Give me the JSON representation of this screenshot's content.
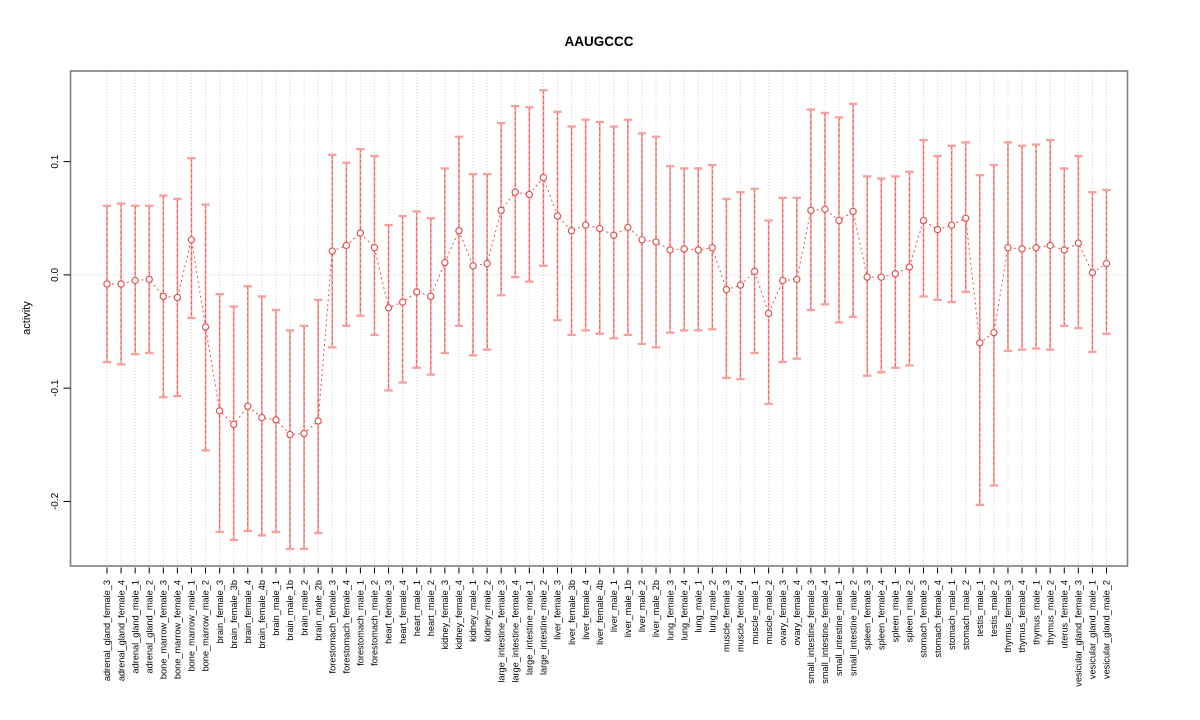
{
  "chart_data": {
    "type": "scatter",
    "title": "AAUGCCC",
    "xlabel": "",
    "ylabel": "activity",
    "ylim": [
      -0.257,
      0.18
    ],
    "yticks": [
      {
        "label": "0.1",
        "value": 0.1
      },
      {
        "label": "0.0",
        "value": 0.0
      },
      {
        "label": "-0.1",
        "value": -0.1
      },
      {
        "label": "-0.2",
        "value": -0.2
      }
    ],
    "grid": {
      "vertical": "dotted line at every category",
      "horizontal": "dotted line at y=0"
    },
    "marker": "open-circle",
    "line_style": "dashed",
    "error_bars": true,
    "categories": [
      "adrenal_gland_female_3",
      "adrenal_gland_female_4",
      "adrenal_gland_male_1",
      "adrenal_gland_male_2",
      "bone_marrow_female_3",
      "bone_marrow_female_4",
      "bone_marrow_male_1",
      "bone_marrow_male_2",
      "brain_female_3",
      "brain_female_3b",
      "brain_female_4",
      "brain_female_4b",
      "brain_male_1",
      "brain_male_1b",
      "brain_male_2",
      "brain_male_2b",
      "forestomach_female_3",
      "forestomach_female_4",
      "forestomach_male_1",
      "forestomach_male_2",
      "heart_female_3",
      "heart_female_4",
      "heart_male_1",
      "heart_male_2",
      "kidney_female_3",
      "kidney_female_4",
      "kidney_male_1",
      "kidney_male_2",
      "large_intestine_female_3",
      "large_intestine_female_4",
      "large_intestine_male_1",
      "large_intestine_male_2",
      "liver_female_3",
      "liver_female_3b",
      "liver_female_4",
      "liver_female_4b",
      "liver_male_1",
      "liver_male_1b",
      "liver_male_2",
      "liver_male_2b",
      "lung_female_3",
      "lung_female_4",
      "lung_male_1",
      "lung_male_2",
      "muscle_female_3",
      "muscle_female_4",
      "muscle_male_1",
      "muscle_male_2",
      "ovary_female_3",
      "ovary_female_4",
      "small_intestine_female_3",
      "small_intestine_female_4",
      "small_intestine_male_1",
      "small_intestine_male_2",
      "spleen_female_3",
      "spleen_female_4",
      "spleen_male_1",
      "spleen_male_2",
      "stomach_female_3",
      "stomach_female_4",
      "stomach_male_1",
      "stomach_male_2",
      "testis_male_1",
      "testis_male_2",
      "thymus_female_3",
      "thymus_female_4",
      "thymus_male_1",
      "thymus_male_2",
      "uterus_female_4",
      "vesicular_gland_female_3",
      "vesicular_gland_male_1",
      "vesicular_gland_male_2"
    ],
    "series": [
      {
        "name": "activity",
        "values": [
          -0.008,
          -0.008,
          -0.005,
          -0.004,
          -0.019,
          -0.02,
          0.031,
          -0.046,
          -0.12,
          -0.132,
          -0.116,
          -0.126,
          -0.128,
          -0.141,
          -0.14,
          -0.129,
          0.021,
          0.026,
          0.037,
          0.024,
          -0.029,
          -0.024,
          -0.015,
          -0.019,
          0.011,
          0.039,
          0.008,
          0.01,
          0.057,
          0.073,
          0.071,
          0.086,
          0.052,
          0.039,
          0.044,
          0.041,
          0.035,
          0.042,
          0.031,
          0.029,
          0.022,
          0.023,
          0.022,
          0.024,
          -0.013,
          -0.009,
          0.003,
          -0.034,
          -0.005,
          -0.004,
          0.057,
          0.058,
          0.048,
          0.056,
          -0.002,
          -0.002,
          0.001,
          0.007,
          0.048,
          0.04,
          0.044,
          0.05,
          -0.06,
          -0.051,
          0.024,
          0.023,
          0.024,
          0.026,
          0.022,
          0.028,
          0.002,
          0.01
        ],
        "err_lo": [
          -0.077,
          -0.079,
          -0.07,
          -0.069,
          -0.108,
          -0.107,
          -0.038,
          -0.155,
          -0.227,
          -0.234,
          -0.226,
          -0.23,
          -0.227,
          -0.242,
          -0.242,
          -0.228,
          -0.064,
          -0.045,
          -0.036,
          -0.053,
          -0.102,
          -0.095,
          -0.082,
          -0.088,
          -0.069,
          -0.045,
          -0.071,
          -0.066,
          -0.018,
          -0.002,
          -0.006,
          0.008,
          -0.04,
          -0.053,
          -0.049,
          -0.052,
          -0.056,
          -0.053,
          -0.061,
          -0.064,
          -0.051,
          -0.049,
          -0.049,
          -0.048,
          -0.091,
          -0.092,
          -0.069,
          -0.114,
          -0.077,
          -0.074,
          -0.031,
          -0.026,
          -0.042,
          -0.037,
          -0.089,
          -0.086,
          -0.082,
          -0.08,
          -0.019,
          -0.022,
          -0.024,
          -0.015,
          -0.203,
          -0.186,
          -0.067,
          -0.066,
          -0.065,
          -0.066,
          -0.045,
          -0.047,
          -0.068,
          -0.052
        ],
        "err_hi": [
          0.061,
          0.063,
          0.061,
          0.061,
          0.07,
          0.067,
          0.103,
          0.062,
          -0.017,
          -0.028,
          -0.01,
          -0.019,
          -0.031,
          -0.049,
          -0.045,
          -0.022,
          0.106,
          0.099,
          0.111,
          0.105,
          0.044,
          0.052,
          0.056,
          0.05,
          0.094,
          0.122,
          0.089,
          0.089,
          0.134,
          0.149,
          0.148,
          0.163,
          0.144,
          0.131,
          0.137,
          0.135,
          0.131,
          0.137,
          0.125,
          0.122,
          0.096,
          0.094,
          0.094,
          0.097,
          0.067,
          0.073,
          0.076,
          0.048,
          0.068,
          0.068,
          0.146,
          0.143,
          0.139,
          0.151,
          0.087,
          0.085,
          0.087,
          0.091,
          0.119,
          0.105,
          0.114,
          0.117,
          0.088,
          0.097,
          0.117,
          0.114,
          0.115,
          0.119,
          0.094,
          0.105,
          0.073,
          0.075
        ]
      }
    ],
    "colors": {
      "point": "#e2544f",
      "line": "#e2544f",
      "error_bar": "#f7a19d",
      "grid": "#d6d6d6",
      "box": "#7f7f7f",
      "tick": "#000000",
      "text": "#000000"
    }
  }
}
